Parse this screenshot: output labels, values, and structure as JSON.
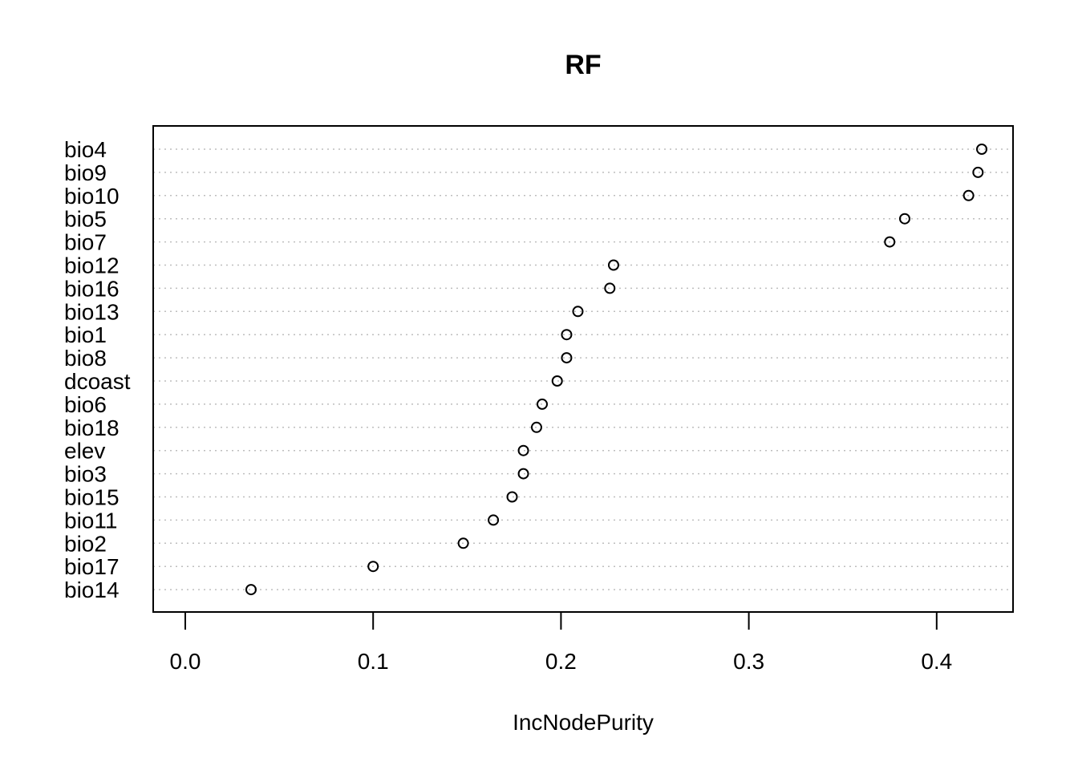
{
  "chart_data": {
    "type": "scatter",
    "subtype": "dotchart",
    "title": "RF",
    "xlabel": "IncNodePurity",
    "ylabel": "",
    "xlim": [
      -0.017,
      0.441
    ],
    "xticks": [
      0.0,
      0.1,
      0.2,
      0.3,
      0.4
    ],
    "xtick_labels": [
      "0.0",
      "0.1",
      "0.2",
      "0.3",
      "0.4"
    ],
    "grid": "horizontal dotted",
    "categories": [
      "bio4",
      "bio9",
      "bio10",
      "bio5",
      "bio7",
      "bio12",
      "bio16",
      "bio13",
      "bio1",
      "bio8",
      "dcoast",
      "bio6",
      "bio18",
      "elev",
      "bio3",
      "bio15",
      "bio11",
      "bio2",
      "bio17",
      "bio14"
    ],
    "values": [
      0.424,
      0.422,
      0.417,
      0.383,
      0.375,
      0.228,
      0.226,
      0.209,
      0.203,
      0.203,
      0.198,
      0.19,
      0.187,
      0.18,
      0.18,
      0.174,
      0.164,
      0.148,
      0.1,
      0.035
    ]
  }
}
